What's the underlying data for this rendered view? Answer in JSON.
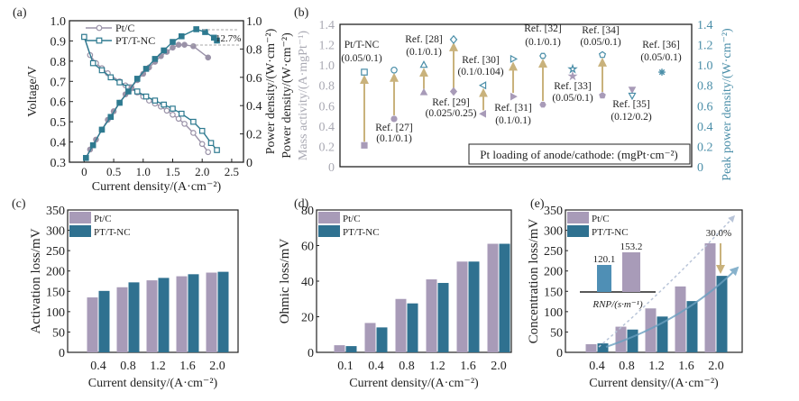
{
  "colors": {
    "ptc": "#a89bb8",
    "ptnc": "#2f7190",
    "ptc_line": "#9a92a8",
    "ptnc_line": "#2e7a90",
    "arrow": "#c9b27c",
    "gray_axis": "#a9a9b3",
    "teal_axis": "#4a8ea8",
    "inset_teal": "#4f8fb5"
  },
  "chart_data": [
    {
      "panel": "(a)",
      "type": "line",
      "xlabel": "Current density/(A·cm⁻²)",
      "ylabel": "Voltage/V",
      "y2label": "Power density/(W·cm⁻²)",
      "xlim": [
        -0.25,
        2.7
      ],
      "ylim": [
        0.3,
        1.0
      ],
      "y2lim": [
        0,
        1.0
      ],
      "xticks": [
        "0",
        "0.5",
        "1.0",
        "1.5",
        "2.0",
        "2.5"
      ],
      "yticks": [
        "0.3",
        "0.4",
        "0.5",
        "0.6",
        "0.7",
        "0.8",
        "0.9",
        "1.0"
      ],
      "y2ticks": [
        "0",
        "0.2",
        "0.4",
        "0.6",
        "0.8",
        "1.0"
      ],
      "annotation": "12.7%",
      "legend": [
        "Pt/C",
        "PT/T-NC"
      ],
      "series": [
        {
          "name": "Pt/C",
          "marker": "circle",
          "axis": "voltage",
          "x": [
            0,
            0.1,
            0.2,
            0.3,
            0.4,
            0.6,
            0.7,
            0.8,
            0.9,
            1.0,
            1.1,
            1.2,
            1.3,
            1.4,
            1.5,
            1.6,
            1.7,
            1.85,
            2.0,
            2.1
          ],
          "y": [
            0.92,
            0.83,
            0.79,
            0.765,
            0.74,
            0.7,
            0.68,
            0.665,
            0.645,
            0.625,
            0.605,
            0.59,
            0.575,
            0.555,
            0.535,
            0.515,
            0.49,
            0.445,
            0.39,
            0.35
          ]
        },
        {
          "name": "PT/T-NC",
          "marker": "square",
          "axis": "voltage",
          "x": [
            0,
            0.15,
            0.3,
            0.45,
            0.6,
            0.75,
            0.9,
            1.05,
            1.2,
            1.35,
            1.5,
            1.65,
            1.85,
            2.0,
            2.15,
            2.25
          ],
          "y": [
            0.92,
            0.79,
            0.755,
            0.72,
            0.695,
            0.67,
            0.65,
            0.625,
            0.605,
            0.585,
            0.565,
            0.54,
            0.5,
            0.455,
            0.395,
            0.36
          ]
        },
        {
          "name": "Pt/C",
          "marker": "circle-filled",
          "axis": "power",
          "x": [
            0.03,
            0.1,
            0.2,
            0.3,
            0.4,
            0.5,
            0.6,
            0.7,
            0.8,
            0.9,
            1.0,
            1.1,
            1.2,
            1.3,
            1.4,
            1.5,
            1.6,
            1.7,
            1.85,
            2.1
          ],
          "y": [
            0.03,
            0.09,
            0.16,
            0.23,
            0.3,
            0.36,
            0.42,
            0.48,
            0.53,
            0.58,
            0.625,
            0.67,
            0.71,
            0.75,
            0.78,
            0.81,
            0.83,
            0.83,
            0.82,
            0.74
          ]
        },
        {
          "name": "PT/T-NC",
          "marker": "square-filled",
          "axis": "power",
          "x": [
            0.03,
            0.15,
            0.3,
            0.45,
            0.6,
            0.75,
            0.9,
            1.05,
            1.2,
            1.35,
            1.5,
            1.65,
            1.9,
            2.05,
            2.2,
            2.25
          ],
          "y": [
            0.03,
            0.12,
            0.23,
            0.32,
            0.42,
            0.5,
            0.59,
            0.66,
            0.73,
            0.79,
            0.85,
            0.89,
            0.94,
            0.92,
            0.88,
            0.86
          ]
        }
      ]
    },
    {
      "panel": "(b)",
      "type": "scatter",
      "ylabel_outer": "Power density/(W·cm⁻²)",
      "ylabel": "Mass activity/(A·mgPt⁻¹)",
      "y2label": "Peak power density/(W·cm⁻²)",
      "ylim": [
        0,
        1.4
      ],
      "y2lim": [
        0,
        1.4
      ],
      "yticks": [
        "0",
        "0.2",
        "0.4",
        "0.6",
        "0.8",
        "1.0",
        "1.2",
        "1.4"
      ],
      "legend_box": "Pt loading of anode/cathode: (mgPt·cm⁻²)",
      "items": [
        {
          "name": "Pt/T-NC",
          "loading": "(0.05/0.1)",
          "mass_activity": 0.21,
          "peak_power": 0.93,
          "marker": "square"
        },
        {
          "name": "Ref. [27]",
          "loading": "(0.1/0.1)",
          "mass_activity": 0.47,
          "peak_power": 0.95,
          "marker": "circle"
        },
        {
          "name": "Ref. [28]",
          "loading": "(0.1/0.1)",
          "mass_activity": 0.73,
          "peak_power": 1.0,
          "marker": "triangle"
        },
        {
          "name": "Ref. [29]",
          "loading": "(0.025/0.25)",
          "mass_activity": 0.74,
          "peak_power": 1.25,
          "marker": "diamond"
        },
        {
          "name": "Ref. [30]",
          "loading": "(0.1/0.104)",
          "mass_activity": 0.52,
          "peak_power": 0.8,
          "marker": "triangle-left"
        },
        {
          "name": "Ref. [31]",
          "loading": "(0.1/0.1)",
          "mass_activity": 0.69,
          "peak_power": 1.06,
          "marker": "triangle-right"
        },
        {
          "name": "Ref. [32]",
          "loading": "(0.1/0.1)",
          "mass_activity": 0.61,
          "peak_power": 1.09,
          "marker": "hexagon"
        },
        {
          "name": "Ref. [33]",
          "loading": "(0.05/0.1)",
          "mass_activity": 0.89,
          "peak_power": 0.96,
          "marker": "star"
        },
        {
          "name": "Ref. [34]",
          "loading": "(0.05/0.1)",
          "mass_activity": 0.7,
          "peak_power": 1.1,
          "marker": "pentagon"
        },
        {
          "name": "Ref. [35]",
          "loading": "(0.12/0.2)",
          "mass_activity": 0.76,
          "peak_power": 0.7,
          "marker": "triangle-down"
        },
        {
          "name": "Ref. [36]",
          "loading": "(0.05/0.1)",
          "mass_activity": null,
          "peak_power": 0.93,
          "marker": "asterisk"
        }
      ]
    },
    {
      "panel": "(c)",
      "type": "bar",
      "xlabel": "Current density/(A·cm⁻²)",
      "ylabel": "Activation loss/mV",
      "ylim": [
        0,
        350
      ],
      "yticks": [
        "0",
        "50",
        "100",
        "150",
        "200",
        "250",
        "300",
        "350"
      ],
      "categories": [
        "0.4",
        "0.8",
        "1.2",
        "1.6",
        "2.0"
      ],
      "series": [
        {
          "name": "Pt/C",
          "values": [
            135,
            160,
            177,
            187,
            196
          ]
        },
        {
          "name": "PT/T-NC",
          "values": [
            151,
            172,
            183,
            192,
            198
          ]
        }
      ]
    },
    {
      "panel": "(d)",
      "type": "bar",
      "xlabel": "Current density/(A·cm⁻²)",
      "ylabel": "Ohmic loss/mV",
      "ylim": [
        0,
        80
      ],
      "yticks": [
        "0",
        "20",
        "40",
        "60",
        "80"
      ],
      "categories": [
        "0.1",
        "0.4",
        "0.8",
        "1.2",
        "1.6",
        "2.0"
      ],
      "series": [
        {
          "name": "Pt/C",
          "values": [
            4,
            16.5,
            30,
            41,
            51,
            61
          ]
        },
        {
          "name": "PT/T-NC",
          "values": [
            3.5,
            14,
            27.5,
            39,
            51,
            61
          ]
        }
      ]
    },
    {
      "panel": "(e)",
      "type": "bar",
      "xlabel": "Current density/(A·cm⁻²)",
      "ylabel": "Concentration loss/mV",
      "ylim": [
        0,
        350
      ],
      "yticks": [
        "0",
        "50",
        "100",
        "150",
        "200",
        "250",
        "300",
        "350"
      ],
      "categories": [
        "0.4",
        "0.8",
        "1.2",
        "1.6",
        "2.0"
      ],
      "series": [
        {
          "name": "Pt/C",
          "values": [
            20,
            63,
            108,
            162,
            268
          ]
        },
        {
          "name": "PT/T-NC",
          "values": [
            22,
            56,
            88,
            126,
            188
          ]
        }
      ],
      "annotation": "30.0%",
      "inset": {
        "xlabel": "RNP/(s·m⁻¹)",
        "categories": [
          "PT/T-NC",
          "Pt/C"
        ],
        "values": [
          120.1,
          153.2
        ],
        "labels": [
          "120.1",
          "153.2"
        ]
      }
    }
  ]
}
